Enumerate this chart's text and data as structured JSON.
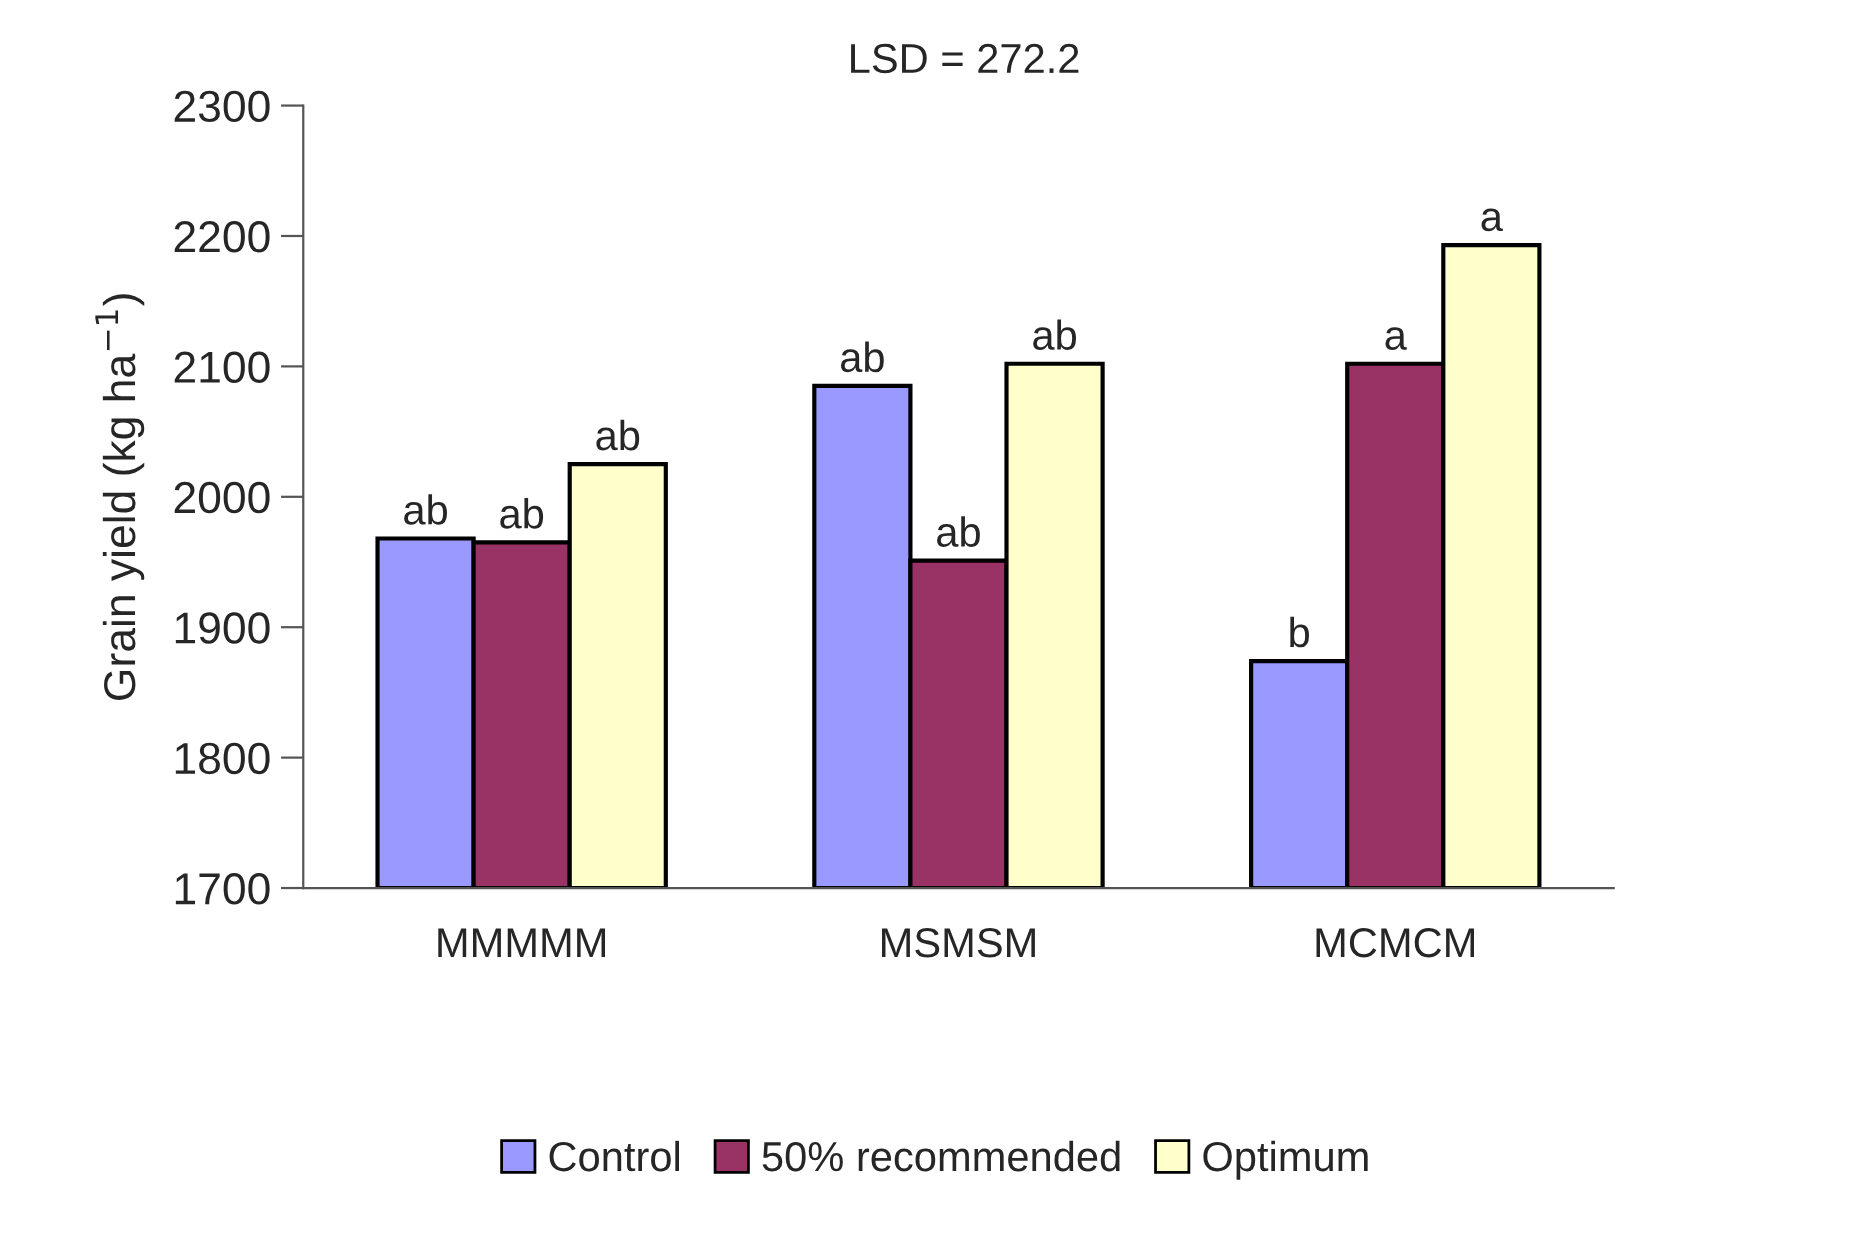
{
  "chart_data": {
    "type": "bar",
    "ylabel": "Grain yield (kg ha$^{−1}$)",
    "annotations": [
      "LSD = 272.2"
    ],
    "categories": [
      "MMMMM",
      "MSMSM",
      "MCMCM"
    ],
    "series": [
      {
        "name": "Control",
        "color": "#9999ff",
        "values": [
          1968,
          2085,
          1874
        ],
        "value_labels": [
          "ab",
          "ab",
          "b"
        ]
      },
      {
        "name": "50% recommended",
        "color": "#993366",
        "values": [
          1965,
          1951,
          2102
        ],
        "value_labels": [
          "ab",
          "ab",
          "a"
        ]
      },
      {
        "name": "Optimum",
        "color": "#ffffcc",
        "values": [
          2025,
          2102,
          2193
        ],
        "value_labels": [
          "ab",
          "ab",
          "a"
        ]
      }
    ],
    "ylim": [
      1700,
      2300
    ],
    "yticks": [
      1700,
      1800,
      1900,
      2000,
      2100,
      2200,
      2300
    ],
    "grid": false,
    "legend": "bottom"
  }
}
